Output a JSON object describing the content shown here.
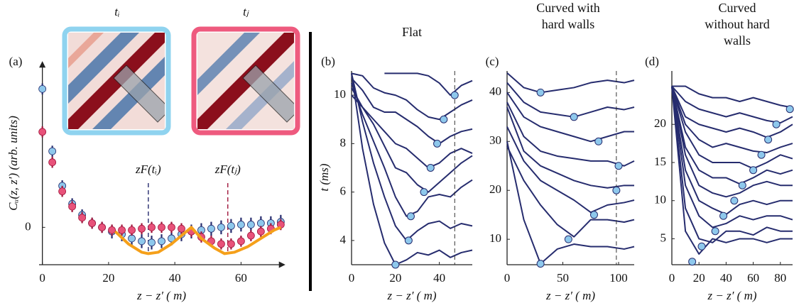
{
  "chart_data": [
    {
      "type": "scatter",
      "panel_label": "(a)",
      "xlabel": "z − z′ (  m)",
      "ylabel": "Cᵤ(z, z′)  (arb. units)",
      "xlim": [
        -1,
        73
      ],
      "ylim": [
        -0.27,
        1.13
      ],
      "xticks": [
        0,
        20,
        40,
        60
      ],
      "yticks": [
        0
      ],
      "x": [
        0,
        3,
        6,
        9,
        12,
        15,
        18,
        21,
        24,
        27,
        30,
        33,
        36,
        39,
        42,
        45,
        48,
        51,
        54,
        57,
        60,
        63,
        66,
        69,
        72
      ],
      "series": [
        {
          "color": "#8ec8ec",
          "error_color": "#262c6e",
          "values": [
            1.0,
            0.55,
            0.3,
            0.17,
            0.09,
            0.03,
            0.0,
            -0.03,
            -0.05,
            -0.08,
            -0.1,
            -0.11,
            -0.1,
            -0.08,
            -0.05,
            -0.03,
            -0.02,
            -0.01,
            0.0,
            0.01,
            0.02,
            0.02,
            0.03,
            0.03,
            0.04
          ],
          "errors": [
            0.04,
            0.04,
            0.04,
            0.04,
            0.04,
            0.04,
            0.04,
            0.05,
            0.05,
            0.05,
            0.05,
            0.05,
            0.05,
            0.05,
            0.05,
            0.05,
            0.05,
            0.05,
            0.05,
            0.05,
            0.05,
            0.05,
            0.05,
            0.05,
            0.05
          ]
        },
        {
          "color": "#e8527a",
          "error_color": "#a0163c",
          "values": [
            0.69,
            0.47,
            0.26,
            0.15,
            0.07,
            0.03,
            0.0,
            -0.02,
            -0.02,
            -0.02,
            -0.01,
            0.0,
            0.0,
            0.0,
            -0.01,
            -0.03,
            -0.07,
            -0.1,
            -0.12,
            -0.12,
            -0.1,
            -0.06,
            -0.03,
            -0.01,
            0.02
          ],
          "errors": [
            0.04,
            0.04,
            0.04,
            0.04,
            0.04,
            0.04,
            0.04,
            0.04,
            0.04,
            0.04,
            0.04,
            0.04,
            0.04,
            0.04,
            0.04,
            0.04,
            0.04,
            0.04,
            0.04,
            0.04,
            0.04,
            0.04,
            0.04,
            0.04,
            0.04
          ]
        }
      ],
      "fit": {
        "color": "#f5a01a",
        "x": [
          22,
          26,
          30,
          32,
          35,
          39,
          42,
          45,
          48,
          52,
          55,
          58,
          62,
          66,
          70,
          72
        ],
        "values": [
          -0.03,
          -0.12,
          -0.18,
          -0.19,
          -0.18,
          -0.12,
          -0.06,
          0.0,
          -0.08,
          -0.15,
          -0.19,
          -0.18,
          -0.14,
          -0.08,
          -0.02,
          0.0
        ]
      },
      "annotations": [
        {
          "text": "zF(tᵢ)",
          "x": 32,
          "color": "#262c6e"
        },
        {
          "text": "zF(tⱼ)",
          "x": 56,
          "color": "#a0163c"
        }
      ],
      "insets": [
        {
          "label": "tᵢ",
          "color": "#262c6e",
          "border": "#8fd3ef"
        },
        {
          "label": "tⱼ",
          "color": "#c0184a",
          "border": "#ee5a7e"
        }
      ]
    },
    {
      "type": "line",
      "panel_label": "(b)",
      "title": "Flat",
      "xlabel": "z − z′ (  m)",
      "ylabel": "t (ms)",
      "xlim": [
        0,
        55
      ],
      "ylim": [
        3,
        11
      ],
      "xticks": [
        0,
        20,
        40
      ],
      "yticks": [
        4,
        6,
        8,
        10
      ],
      "color": "#262c6e",
      "vline": 47,
      "x": [
        0,
        5,
        10,
        15,
        20,
        25,
        30,
        35,
        40,
        45,
        50,
        55
      ],
      "series": [
        {
          "values": [
            10.9,
            7.8,
            5.5,
            3.9,
            3.0,
            3.2,
            3.5,
            3.4,
            3.6,
            3.3,
            3.5,
            3.6
          ]
        },
        {
          "values": [
            10.9,
            8.9,
            7.2,
            5.8,
            4.6,
            4.0,
            4.4,
            4.7,
            4.8,
            4.5,
            4.7,
            4.6
          ]
        },
        {
          "values": [
            10.5,
            9.2,
            8.1,
            7.0,
            5.8,
            5.0,
            5.2,
            5.8,
            5.9,
            5.8,
            6.2,
            6.5
          ]
        },
        {
          "values": [
            10.3,
            9.5,
            8.8,
            7.9,
            7.0,
            6.8,
            6.3,
            6.0,
            6.4,
            6.8,
            7.2,
            7.5
          ]
        },
        {
          "values": [
            10.0,
            9.5,
            9.0,
            8.5,
            8.0,
            7.8,
            7.4,
            7.0,
            7.2,
            7.6,
            7.8,
            7.6
          ]
        },
        {
          "values": [
            10.7,
            10.2,
            9.5,
            9.3,
            9.3,
            9.0,
            8.7,
            8.3,
            8.0,
            8.3,
            8.5,
            8.6
          ]
        },
        {
          "values": [
            10.9,
            10.8,
            10.3,
            10.1,
            10.0,
            9.8,
            9.4,
            9.1,
            9.0,
            9.3,
            9.6,
            9.8
          ]
        },
        {
          "values": [
            null,
            null,
            null,
            10.9,
            10.9,
            10.9,
            10.9,
            10.8,
            10.5,
            10.0,
            10.4,
            10.6
          ]
        }
      ],
      "markers": {
        "color": "#8ec8ec",
        "x": [
          20,
          26,
          27,
          33,
          36,
          39,
          42,
          47
        ],
        "values": [
          3,
          4,
          5,
          6,
          7,
          8,
          9,
          10
        ]
      }
    },
    {
      "type": "line",
      "panel_label": "(c)",
      "title": "Curved with hard walls",
      "xlabel": "z − z′ (  m)",
      "xlim": [
        0,
        114
      ],
      "ylim": [
        4.8,
        44.4
      ],
      "xticks": [
        0,
        50,
        100
      ],
      "yticks": [
        10,
        20,
        30,
        40
      ],
      "color": "#262c6e",
      "vline": 98,
      "x": [
        0,
        15,
        30,
        45,
        60,
        75,
        90,
        105,
        114
      ],
      "series": [
        {
          "values": [
            30,
            14,
            5,
            8,
            9,
            8.5,
            8.5,
            8,
            8.5
          ]
        },
        {
          "values": [
            29,
            22,
            17,
            13,
            10.5,
            14,
            14,
            13.5,
            14
          ]
        },
        {
          "values": [
            33,
            26,
            22,
            20,
            18,
            15.5,
            17,
            17.5,
            18
          ]
        },
        {
          "values": [
            37,
            28,
            25,
            23.5,
            22,
            21,
            20.5,
            21,
            21
          ]
        },
        {
          "values": [
            38,
            31,
            28,
            27,
            26.5,
            26,
            26,
            25,
            26
          ]
        },
        {
          "values": [
            40,
            35,
            33,
            32,
            31,
            30,
            31,
            32,
            32
          ]
        },
        {
          "values": [
            42,
            38,
            36,
            35.5,
            35,
            36,
            37,
            36.5,
            37
          ]
        },
        {
          "values": [
            44,
            41,
            40,
            40.5,
            41,
            42,
            42.5,
            42,
            42.5
          ]
        }
      ],
      "markers": {
        "color": "#8ec8ec",
        "x": [
          30,
          55,
          78,
          98,
          100,
          82,
          60,
          30
        ],
        "values": [
          5,
          10,
          15,
          20,
          25,
          30,
          35,
          40
        ]
      }
    },
    {
      "type": "line",
      "panel_label": "(d)",
      "title": "Curved without hard walls",
      "xlabel": "z − z′ (  m)",
      "xlim": [
        0,
        89
      ],
      "ylim": [
        1.6,
        27
      ],
      "xticks": [
        0,
        20,
        40,
        60,
        80
      ],
      "yticks": [
        5,
        10,
        15,
        20
      ],
      "color": "#262c6e",
      "x": [
        0,
        10,
        20,
        30,
        40,
        50,
        60,
        70,
        80,
        89
      ],
      "series": [
        {
          "values": [
            25,
            6,
            3,
            5,
            4.5,
            5,
            5,
            4.5,
            5,
            5
          ]
        },
        {
          "values": [
            25,
            9,
            5,
            4.5,
            6,
            6,
            5.5,
            6.5,
            6,
            6
          ]
        },
        {
          "values": [
            25,
            12,
            8,
            6.5,
            7,
            8,
            7.5,
            8,
            8,
            7.5
          ]
        },
        {
          "values": [
            25,
            14,
            10,
            9,
            8.2,
            9.5,
            10,
            9.5,
            10,
            10
          ]
        },
        {
          "values": [
            25,
            16,
            12,
            11,
            10.5,
            11,
            12,
            12.5,
            12,
            12
          ]
        },
        {
          "values": [
            25,
            17,
            14,
            13,
            13,
            12.2,
            13,
            14,
            13.5,
            14
          ]
        },
        {
          "values": [
            25,
            19,
            16,
            15,
            15,
            15,
            14.2,
            15,
            16,
            15.5
          ]
        },
        {
          "values": [
            25,
            20,
            18,
            17,
            17.5,
            17,
            16.5,
            16.3,
            17,
            17.5
          ]
        },
        {
          "values": [
            25,
            21,
            20,
            19.5,
            19,
            19.5,
            19,
            18.3,
            19,
            20
          ]
        },
        {
          "values": [
            25,
            23,
            22,
            21.5,
            21,
            21.5,
            21,
            20.5,
            20.2,
            21
          ]
        },
        {
          "values": [
            25,
            25,
            24,
            23.5,
            23.5,
            23,
            23.5,
            23,
            22.5,
            22.2
          ]
        }
      ],
      "markers": {
        "color": "#8ec8ec",
        "x": [
          15,
          22,
          32,
          38,
          46,
          52,
          60,
          66,
          71,
          77,
          87
        ],
        "values": [
          2,
          4,
          6,
          8,
          10,
          12,
          14,
          16,
          18,
          20,
          22
        ]
      }
    }
  ]
}
